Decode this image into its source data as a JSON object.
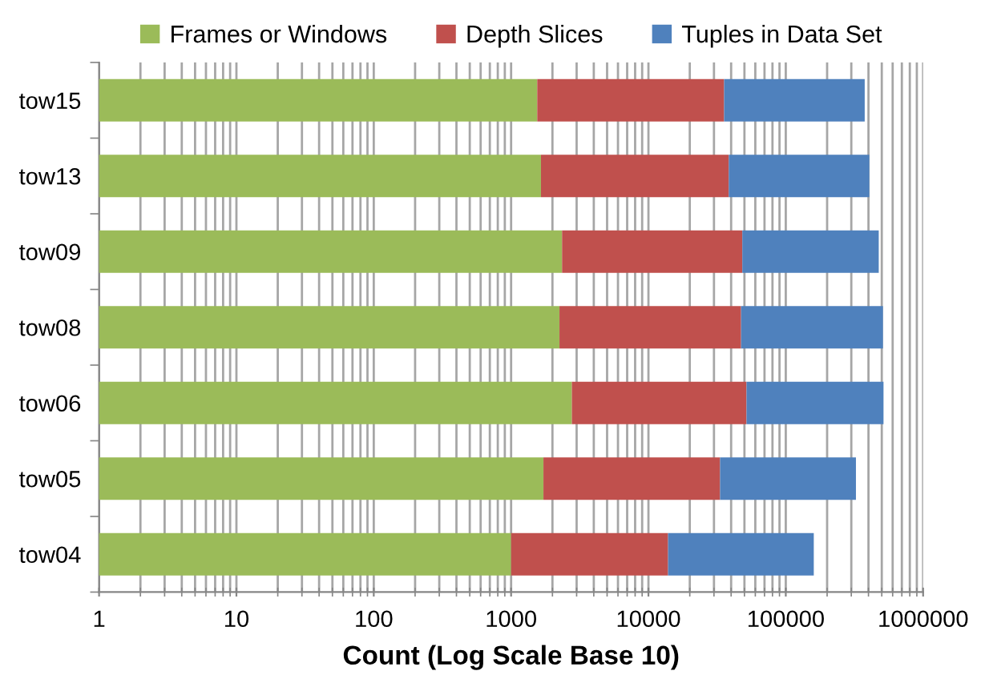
{
  "chart_data": {
    "type": "bar",
    "orientation": "horizontal",
    "stacked": true,
    "log": "x",
    "xlabel": "Count (Log Scale Base 10)",
    "categories": [
      "tow15",
      "tow13",
      "tow09",
      "tow08",
      "tow06",
      "tow05",
      "tow04"
    ],
    "series": [
      {
        "name": "Frames or Windows",
        "color": "#9bbb59",
        "values": [
          1550,
          1650,
          2350,
          2250,
          2770,
          1720,
          1000
        ]
      },
      {
        "name": "Depth Slices",
        "color": "#c0504d",
        "values": [
          34000,
          36800,
          45900,
          45000,
          49000,
          31500,
          12900
        ]
      },
      {
        "name": "Tuples in Data Set",
        "color": "#4f81bd",
        "values": [
          340000,
          367600,
          427000,
          463000,
          463000,
          291000,
          146000
        ]
      }
    ],
    "xlim": [
      1,
      1000000
    ],
    "xticks": [
      1,
      10,
      100,
      1000,
      10000,
      100000,
      1000000
    ],
    "grid": "x",
    "legend": "top"
  }
}
